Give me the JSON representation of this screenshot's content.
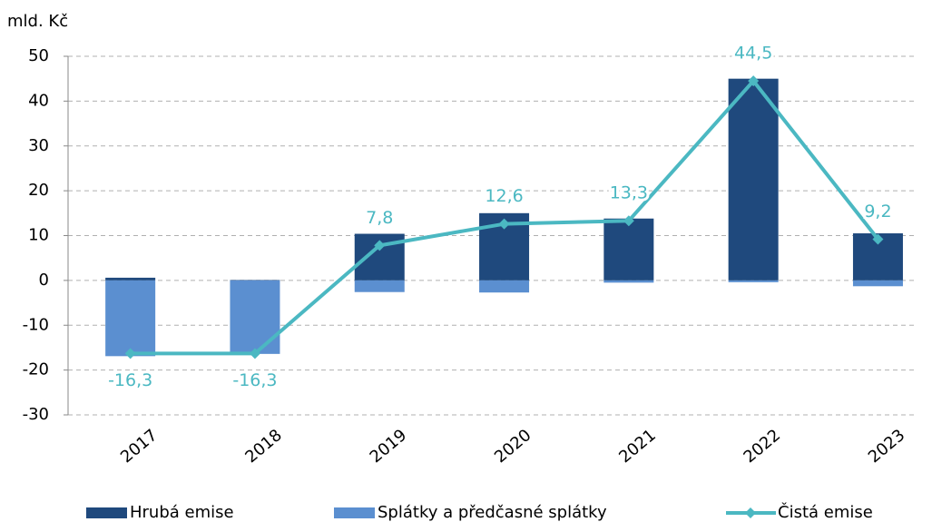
{
  "chart_data": {
    "type": "bar",
    "y_label": "mld. Kč",
    "categories": [
      "2017",
      "2018",
      "2019",
      "2020",
      "2021",
      "2022",
      "2023"
    ],
    "series": [
      {
        "name": "Hrubá emise",
        "type": "bar",
        "color": "#1f497d",
        "values": [
          0.6,
          0.1,
          10.4,
          15.0,
          13.8,
          45.0,
          10.5
        ]
      },
      {
        "name": "Splátky a předčasné splátky",
        "type": "bar",
        "color": "#5b8fd0",
        "values": [
          -16.9,
          -16.4,
          -2.6,
          -2.7,
          -0.5,
          -0.4,
          -1.3
        ]
      },
      {
        "name": "Čistá emise",
        "type": "line",
        "color": "#4bb8c2",
        "values": [
          -16.3,
          -16.3,
          7.8,
          12.6,
          13.3,
          44.5,
          9.2
        ],
        "value_labels": [
          "-16,3",
          "-16,3",
          "7,8",
          "12,6",
          "13,3",
          "44,5",
          "9,2"
        ]
      }
    ],
    "ylim": [
      -30,
      50
    ],
    "yticks": [
      -30,
      -20,
      -10,
      0,
      10,
      20,
      30,
      40,
      50
    ],
    "grid": true,
    "legend": "bottom"
  }
}
